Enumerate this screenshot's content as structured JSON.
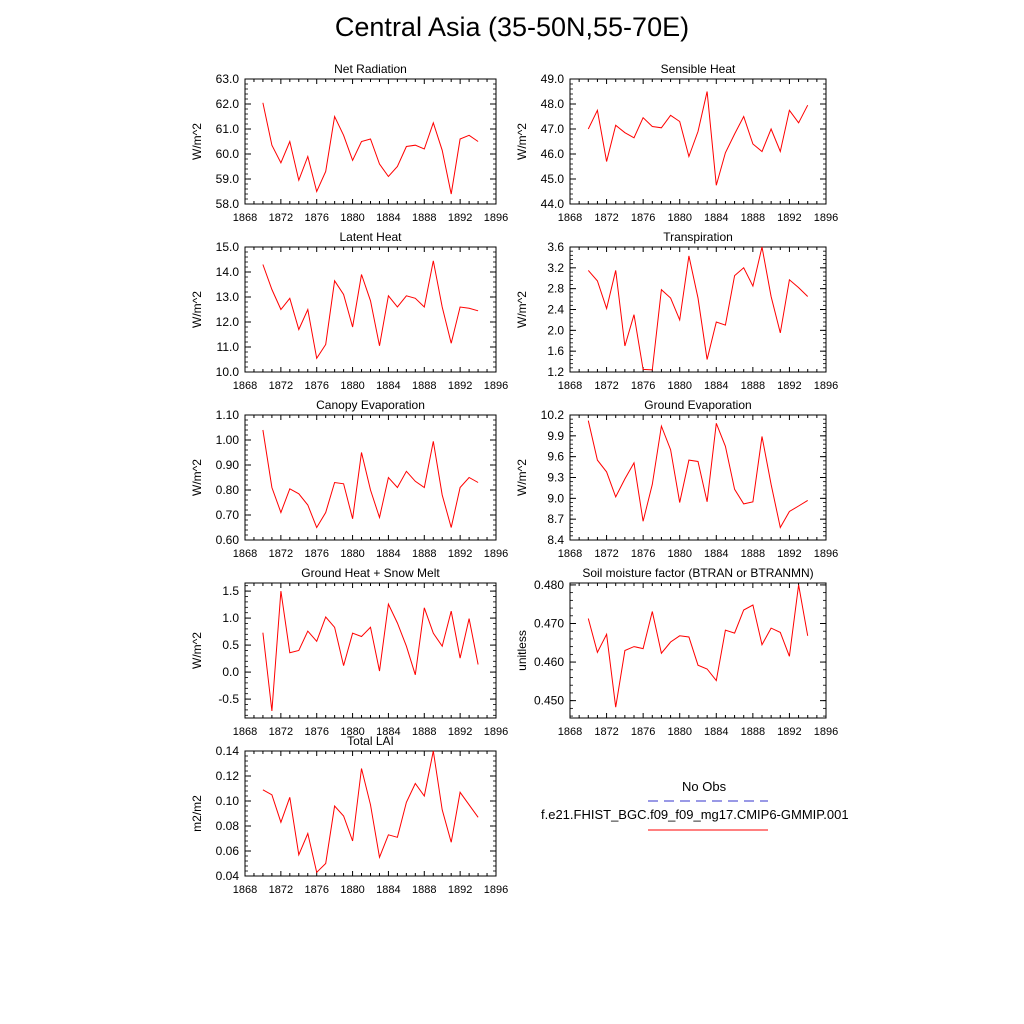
{
  "title": "Central Asia (35-50N,55-70E)",
  "legend": {
    "obs_label": "No Obs",
    "obs_color": "#3333cc",
    "model_label": "f.e21.FHIST_BGC.f09_f09_mg17.CMIP6-GMMIP.001",
    "model_color": "#ff0000"
  },
  "chart_data": [
    {
      "type": "line",
      "title": "Net Radiation",
      "ylabel": "W/m^2",
      "xlim": [
        1868,
        1896
      ],
      "ylim": [
        58.0,
        63.0
      ],
      "xticks": [
        "1868",
        "1872",
        "1876",
        "1880",
        "1884",
        "1888",
        "1892",
        "1896"
      ],
      "yticks": [
        "58.0",
        "59.0",
        "60.0",
        "61.0",
        "62.0",
        "63.0"
      ],
      "x": [
        1870,
        1871,
        1872,
        1873,
        1874,
        1875,
        1876,
        1877,
        1878,
        1879,
        1880,
        1881,
        1882,
        1883,
        1884,
        1885,
        1886,
        1887,
        1888,
        1889,
        1890,
        1891,
        1892,
        1893,
        1894
      ],
      "series": [
        {
          "values": [
            62.05,
            60.35,
            59.65,
            60.5,
            58.95,
            59.9,
            58.5,
            59.3,
            61.5,
            60.75,
            59.75,
            60.5,
            60.6,
            59.6,
            59.1,
            59.5,
            60.3,
            60.35,
            60.2,
            61.25,
            60.15,
            58.4,
            60.6,
            60.75,
            60.5
          ],
          "color": "#ff0000"
        }
      ]
    },
    {
      "type": "line",
      "title": "Sensible Heat",
      "ylabel": "W/m^2",
      "xlim": [
        1868,
        1896
      ],
      "ylim": [
        44.0,
        49.0
      ],
      "xticks": [
        "1868",
        "1872",
        "1876",
        "1880",
        "1884",
        "1888",
        "1892",
        "1896"
      ],
      "yticks": [
        "44.0",
        "45.0",
        "46.0",
        "47.0",
        "48.0",
        "49.0"
      ],
      "x": [
        1870,
        1871,
        1872,
        1873,
        1874,
        1875,
        1876,
        1877,
        1878,
        1879,
        1880,
        1881,
        1882,
        1883,
        1884,
        1885,
        1886,
        1887,
        1888,
        1889,
        1890,
        1891,
        1892,
        1893,
        1894
      ],
      "series": [
        {
          "values": [
            47.0,
            47.75,
            45.7,
            47.15,
            46.85,
            46.65,
            47.45,
            47.1,
            47.05,
            47.55,
            47.3,
            45.9,
            46.9,
            48.5,
            44.75,
            46.05,
            46.8,
            47.5,
            46.4,
            46.1,
            47.0,
            46.1,
            47.75,
            47.25,
            47.95
          ],
          "color": "#ff0000"
        }
      ]
    },
    {
      "type": "line",
      "title": "Latent Heat",
      "ylabel": "W/m^2",
      "xlim": [
        1868,
        1896
      ],
      "ylim": [
        10.0,
        15.0
      ],
      "xticks": [
        "1868",
        "1872",
        "1876",
        "1880",
        "1884",
        "1888",
        "1892",
        "1896"
      ],
      "yticks": [
        "10.0",
        "11.0",
        "12.0",
        "13.0",
        "14.0",
        "15.0"
      ],
      "x": [
        1870,
        1871,
        1872,
        1873,
        1874,
        1875,
        1876,
        1877,
        1878,
        1879,
        1880,
        1881,
        1882,
        1883,
        1884,
        1885,
        1886,
        1887,
        1888,
        1889,
        1890,
        1891,
        1892,
        1893,
        1894
      ],
      "series": [
        {
          "values": [
            14.3,
            13.3,
            12.5,
            12.95,
            11.7,
            12.5,
            10.55,
            11.1,
            13.65,
            13.1,
            11.8,
            13.9,
            12.85,
            11.05,
            13.05,
            12.6,
            13.05,
            12.95,
            12.6,
            14.45,
            12.6,
            11.15,
            12.6,
            12.55,
            12.45
          ],
          "color": "#ff0000"
        }
      ]
    },
    {
      "type": "line",
      "title": "Transpiration",
      "ylabel": "W/m^2",
      "xlim": [
        1868,
        1896
      ],
      "ylim": [
        1.2,
        3.6
      ],
      "xticks": [
        "1868",
        "1872",
        "1876",
        "1880",
        "1884",
        "1888",
        "1892",
        "1896"
      ],
      "yticks": [
        "1.2",
        "1.6",
        "2.0",
        "2.4",
        "2.8",
        "3.2",
        "3.6"
      ],
      "x": [
        1870,
        1871,
        1872,
        1873,
        1874,
        1875,
        1876,
        1877,
        1878,
        1879,
        1880,
        1881,
        1882,
        1883,
        1884,
        1885,
        1886,
        1887,
        1888,
        1889,
        1890,
        1891,
        1892,
        1893,
        1894
      ],
      "series": [
        {
          "values": [
            3.15,
            2.95,
            2.42,
            3.15,
            1.7,
            2.3,
            1.25,
            1.24,
            2.78,
            2.62,
            2.2,
            3.43,
            2.62,
            1.44,
            2.16,
            2.1,
            3.05,
            3.2,
            2.85,
            3.6,
            2.65,
            1.95,
            2.97,
            2.82,
            2.65
          ],
          "color": "#ff0000"
        }
      ]
    },
    {
      "type": "line",
      "title": "Canopy Evaporation",
      "ylabel": "W/m^2",
      "xlim": [
        1868,
        1896
      ],
      "ylim": [
        0.6,
        1.1
      ],
      "xticks": [
        "1868",
        "1872",
        "1876",
        "1880",
        "1884",
        "1888",
        "1892",
        "1896"
      ],
      "yticks": [
        "0.60",
        "0.70",
        "0.80",
        "0.90",
        "1.00",
        "1.10"
      ],
      "x": [
        1870,
        1871,
        1872,
        1873,
        1874,
        1875,
        1876,
        1877,
        1878,
        1879,
        1880,
        1881,
        1882,
        1883,
        1884,
        1885,
        1886,
        1887,
        1888,
        1889,
        1890,
        1891,
        1892,
        1893,
        1894
      ],
      "series": [
        {
          "values": [
            1.04,
            0.81,
            0.71,
            0.805,
            0.785,
            0.74,
            0.65,
            0.71,
            0.83,
            0.825,
            0.685,
            0.95,
            0.8,
            0.69,
            0.85,
            0.81,
            0.875,
            0.835,
            0.81,
            0.995,
            0.78,
            0.65,
            0.81,
            0.85,
            0.83
          ],
          "color": "#ff0000"
        }
      ]
    },
    {
      "type": "line",
      "title": "Ground Evaporation",
      "ylabel": "W/m^2",
      "xlim": [
        1868,
        1896
      ],
      "ylim": [
        8.4,
        10.2
      ],
      "xticks": [
        "1868",
        "1872",
        "1876",
        "1880",
        "1884",
        "1888",
        "1892",
        "1896"
      ],
      "yticks": [
        "8.4",
        "8.7",
        "9.0",
        "9.3",
        "9.6",
        "9.9",
        "10.2"
      ],
      "x": [
        1870,
        1871,
        1872,
        1873,
        1874,
        1875,
        1876,
        1877,
        1878,
        1879,
        1880,
        1881,
        1882,
        1883,
        1884,
        1885,
        1886,
        1887,
        1888,
        1889,
        1890,
        1891,
        1892,
        1893,
        1894
      ],
      "series": [
        {
          "values": [
            10.12,
            9.55,
            9.38,
            9.02,
            9.28,
            9.51,
            8.67,
            9.2,
            10.04,
            9.7,
            8.94,
            9.55,
            9.53,
            8.95,
            10.08,
            9.75,
            9.13,
            8.92,
            8.95,
            9.89,
            9.2,
            8.58,
            8.81,
            8.89,
            8.97
          ],
          "color": "#ff0000"
        }
      ]
    },
    {
      "type": "line",
      "title": "Ground Heat + Snow Melt",
      "ylabel": "W/m^2",
      "xlim": [
        1868,
        1896
      ],
      "ylim": [
        -0.85,
        1.65
      ],
      "xticks": [
        "1868",
        "1872",
        "1876",
        "1880",
        "1884",
        "1888",
        "1892",
        "1896"
      ],
      "yticks": [
        "-0.5",
        "0.0",
        "0.5",
        "1.0",
        "1.5"
      ],
      "ytickvals": [
        -0.5,
        0.0,
        0.5,
        1.0,
        1.5
      ],
      "x": [
        1870,
        1871,
        1872,
        1873,
        1874,
        1875,
        1876,
        1877,
        1878,
        1879,
        1880,
        1881,
        1882,
        1883,
        1884,
        1885,
        1886,
        1887,
        1888,
        1889,
        1890,
        1891,
        1892,
        1893,
        1894
      ],
      "series": [
        {
          "values": [
            0.73,
            -0.72,
            1.5,
            0.36,
            0.4,
            0.76,
            0.57,
            1.02,
            0.83,
            0.12,
            0.72,
            0.66,
            0.83,
            0.02,
            1.26,
            0.91,
            0.48,
            -0.05,
            1.19,
            0.72,
            0.48,
            1.13,
            0.26,
            0.99,
            0.14
          ],
          "color": "#ff0000"
        }
      ]
    },
    {
      "type": "line",
      "title": "Soil moisture factor (BTRAN or BTRANMN)",
      "ylabel": "unitless",
      "xlim": [
        1868,
        1896
      ],
      "ylim": [
        0.4455,
        0.4805
      ],
      "xticks": [
        "1868",
        "1872",
        "1876",
        "1880",
        "1884",
        "1888",
        "1892",
        "1896"
      ],
      "yticks": [
        "0.450",
        "0.460",
        "0.470",
        "0.480"
      ],
      "ytickvals": [
        0.45,
        0.46,
        0.47,
        0.48
      ],
      "x": [
        1870,
        1871,
        1872,
        1873,
        1874,
        1875,
        1876,
        1877,
        1878,
        1879,
        1880,
        1881,
        1882,
        1883,
        1884,
        1885,
        1886,
        1887,
        1888,
        1889,
        1890,
        1891,
        1892,
        1893,
        1894
      ],
      "series": [
        {
          "values": [
            0.4713,
            0.4625,
            0.4672,
            0.4483,
            0.463,
            0.464,
            0.4635,
            0.4731,
            0.4623,
            0.4652,
            0.4668,
            0.4665,
            0.4592,
            0.4582,
            0.4552,
            0.4683,
            0.4675,
            0.4735,
            0.4748,
            0.4645,
            0.4688,
            0.4677,
            0.4615,
            0.48,
            0.4668
          ],
          "color": "#ff0000"
        }
      ]
    },
    {
      "type": "line",
      "title": "Total LAI",
      "ylabel": "m2/m2",
      "xlim": [
        1868,
        1896
      ],
      "ylim": [
        0.04,
        0.14
      ],
      "xticks": [
        "1868",
        "1872",
        "1876",
        "1880",
        "1884",
        "1888",
        "1892",
        "1896"
      ],
      "yticks": [
        "0.04",
        "0.06",
        "0.08",
        "0.10",
        "0.12",
        "0.14"
      ],
      "x": [
        1870,
        1871,
        1872,
        1873,
        1874,
        1875,
        1876,
        1877,
        1878,
        1879,
        1880,
        1881,
        1882,
        1883,
        1884,
        1885,
        1886,
        1887,
        1888,
        1889,
        1890,
        1891,
        1892,
        1893,
        1894
      ],
      "series": [
        {
          "values": [
            0.109,
            0.105,
            0.083,
            0.103,
            0.057,
            0.074,
            0.043,
            0.05,
            0.096,
            0.088,
            0.068,
            0.126,
            0.097,
            0.055,
            0.073,
            0.071,
            0.099,
            0.114,
            0.104,
            0.14,
            0.093,
            0.067,
            0.107,
            0.097,
            0.087
          ],
          "color": "#ff0000"
        }
      ]
    }
  ]
}
